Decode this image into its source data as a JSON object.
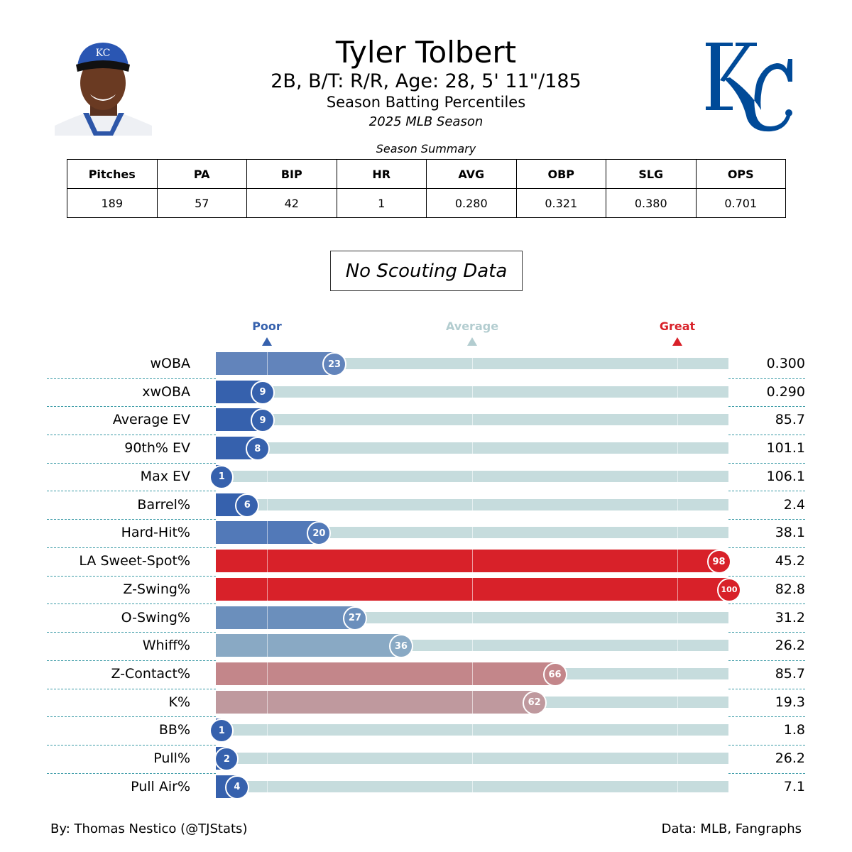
{
  "header": {
    "player_name": "Tyler Tolbert",
    "bio_line": "2B, B/T: R/R, Age: 28, 5' 11\"/185",
    "subtitle": "Season Batting Percentiles",
    "season": "2025 MLB Season",
    "headshot": "player-headshot-image",
    "team_logo": "kc-royals-logo"
  },
  "summary": {
    "title": "Season Summary",
    "columns": [
      "Pitches",
      "PA",
      "BIP",
      "HR",
      "AVG",
      "OBP",
      "SLG",
      "OPS"
    ],
    "values": [
      "189",
      "57",
      "42",
      "1",
      "0.280",
      "0.321",
      "0.380",
      "0.701"
    ]
  },
  "scouting": {
    "message": "No Scouting Data"
  },
  "legend": {
    "poor": {
      "label": "Poor",
      "color": "#3661ad"
    },
    "average": {
      "label": "Average",
      "color": "#b3cdd0"
    },
    "great": {
      "label": "Great",
      "color": "#d82129"
    }
  },
  "colors": {
    "track": "#c6dcdd",
    "separator": "#3a9aa6"
  },
  "chart_data": {
    "type": "bar",
    "orientation": "horizontal",
    "title": "Season Batting Percentiles",
    "xlim": [
      0,
      100
    ],
    "gridlines_at": [
      10,
      50,
      90
    ],
    "categories": [
      "wOBA",
      "xwOBA",
      "Average EV",
      "90th% EV",
      "Max EV",
      "Barrel%",
      "Hard-Hit%",
      "LA Sweet-Spot%",
      "Z-Swing%",
      "O-Swing%",
      "Whiff%",
      "Z-Contact%",
      "K%",
      "BB%",
      "Pull%",
      "Pull Air%"
    ],
    "percentiles": [
      23,
      9,
      9,
      8,
      1,
      6,
      20,
      98,
      100,
      27,
      36,
      66,
      62,
      1,
      2,
      4
    ],
    "stat_values": [
      "0.300",
      "0.290",
      "85.7",
      "101.1",
      "106.1",
      "2.4",
      "38.1",
      "45.2",
      "82.8",
      "31.2",
      "26.2",
      "85.7",
      "19.3",
      "1.8",
      "26.2",
      "7.1"
    ],
    "bar_colors": [
      "#6284bb",
      "#3661ad",
      "#3661ad",
      "#3661ad",
      "#3661ad",
      "#3661ad",
      "#5279b8",
      "#d82129",
      "#d82129",
      "#6b8fbc",
      "#89a9c4",
      "#c3868a",
      "#bf999e",
      "#3661ad",
      "#3661ad",
      "#3661ad"
    ]
  },
  "footer": {
    "credit": "By: Thomas Nestico (@TJStats)",
    "source": "Data: MLB, Fangraphs"
  }
}
